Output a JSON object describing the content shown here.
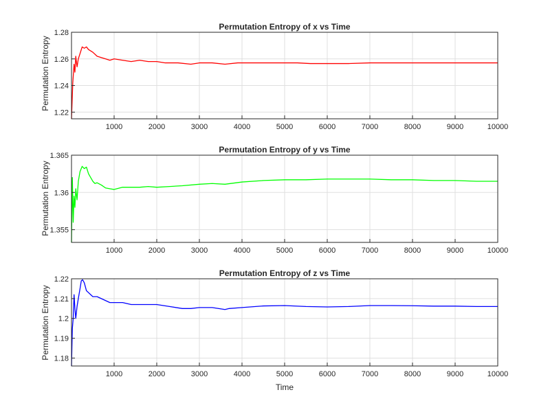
{
  "chart_data": [
    {
      "type": "line",
      "title": "Permutation Entropy of x vs Time",
      "xlabel": "",
      "ylabel": "Permutation Entropy",
      "xlim": [
        0,
        10000
      ],
      "ylim": [
        1.215,
        1.28
      ],
      "xticks": [
        1000,
        2000,
        3000,
        4000,
        5000,
        6000,
        7000,
        8000,
        9000,
        10000
      ],
      "xtick_labels": [
        "1000",
        "2000",
        "3000",
        "4000",
        "5000",
        "6000",
        "7000",
        "8000",
        "9000",
        "10000"
      ],
      "yticks": [
        1.22,
        1.24,
        1.26,
        1.28
      ],
      "ytick_labels": [
        "1.22",
        "1.24",
        "1.26",
        "1.28"
      ],
      "grid": true,
      "color": "#ff0000",
      "series": [
        {
          "x": [
            0,
            30,
            60,
            80,
            100,
            130,
            160,
            200,
            250,
            300,
            350,
            400,
            500,
            600,
            700,
            800,
            900,
            1000,
            1200,
            1400,
            1600,
            1800,
            2000,
            2200,
            2500,
            2800,
            3000,
            3300,
            3600,
            3900,
            4200,
            4500,
            4800,
            5000,
            5300,
            5600,
            6000,
            6500,
            7000,
            7500,
            8000,
            8500,
            9000,
            9500,
            10000
          ],
          "y": [
            1.215,
            1.242,
            1.256,
            1.25,
            1.262,
            1.254,
            1.26,
            1.264,
            1.269,
            1.268,
            1.269,
            1.267,
            1.265,
            1.262,
            1.261,
            1.26,
            1.259,
            1.26,
            1.259,
            1.258,
            1.259,
            1.258,
            1.258,
            1.257,
            1.257,
            1.256,
            1.257,
            1.257,
            1.256,
            1.257,
            1.257,
            1.257,
            1.257,
            1.257,
            1.257,
            1.2565,
            1.2565,
            1.2565,
            1.257,
            1.257,
            1.257,
            1.257,
            1.257,
            1.257,
            1.257
          ]
        }
      ]
    },
    {
      "type": "line",
      "title": "Permutation Entropy of y vs Time",
      "xlabel": "",
      "ylabel": "Permutation Entropy",
      "xlim": [
        0,
        10000
      ],
      "ylim": [
        1.3533,
        1.365
      ],
      "xticks": [
        1000,
        2000,
        3000,
        4000,
        5000,
        6000,
        7000,
        8000,
        9000,
        10000
      ],
      "xtick_labels": [
        "1000",
        "2000",
        "3000",
        "4000",
        "5000",
        "6000",
        "7000",
        "8000",
        "9000",
        "10000"
      ],
      "yticks": [
        1.355,
        1.36,
        1.365
      ],
      "ytick_labels": [
        "1.355",
        "1.36",
        "1.365"
      ],
      "grid": true,
      "color": "#00ff00",
      "series": [
        {
          "x": [
            0,
            20,
            40,
            60,
            80,
            100,
            130,
            160,
            200,
            250,
            300,
            350,
            400,
            450,
            500,
            550,
            600,
            700,
            800,
            900,
            1000,
            1200,
            1400,
            1600,
            1800,
            2000,
            2300,
            2600,
            3000,
            3300,
            3600,
            4000,
            4500,
            5000,
            5500,
            6000,
            6500,
            7000,
            7500,
            8000,
            8500,
            9000,
            9500,
            10000
          ],
          "y": [
            1.3533,
            1.362,
            1.356,
            1.3595,
            1.358,
            1.3605,
            1.359,
            1.3615,
            1.3628,
            1.3635,
            1.3632,
            1.3634,
            1.3625,
            1.362,
            1.3615,
            1.3612,
            1.3613,
            1.361,
            1.3606,
            1.3605,
            1.3604,
            1.3607,
            1.3607,
            1.3607,
            1.3608,
            1.3607,
            1.3608,
            1.3609,
            1.3611,
            1.3612,
            1.3611,
            1.3614,
            1.3616,
            1.3617,
            1.3617,
            1.3618,
            1.3618,
            1.3618,
            1.3617,
            1.3617,
            1.3616,
            1.3616,
            1.3615,
            1.3615
          ]
        }
      ]
    },
    {
      "type": "line",
      "title": "Permutation Entropy of z vs Time",
      "xlabel": "Time",
      "ylabel": "Permutation Entropy",
      "xlim": [
        0,
        10000
      ],
      "ylim": [
        1.176,
        1.22
      ],
      "xticks": [
        1000,
        2000,
        3000,
        4000,
        5000,
        6000,
        7000,
        8000,
        9000,
        10000
      ],
      "xtick_labels": [
        "1000",
        "2000",
        "3000",
        "4000",
        "5000",
        "6000",
        "7000",
        "8000",
        "9000",
        "10000"
      ],
      "yticks": [
        1.18,
        1.19,
        1.2,
        1.21,
        1.22
      ],
      "ytick_labels": [
        "1.18",
        "1.19",
        "1.2",
        "1.21",
        "1.22"
      ],
      "grid": true,
      "color": "#0000ff",
      "series": [
        {
          "x": [
            0,
            20,
            40,
            60,
            80,
            100,
            130,
            160,
            200,
            230,
            260,
            300,
            350,
            400,
            450,
            500,
            600,
            700,
            800,
            900,
            1000,
            1200,
            1400,
            1600,
            1800,
            2000,
            2300,
            2600,
            2800,
            3000,
            3300,
            3600,
            3700,
            4000,
            4500,
            5000,
            5500,
            6000,
            6500,
            7000,
            7500,
            8000,
            8500,
            9000,
            9500,
            10000
          ],
          "y": [
            1.176,
            1.195,
            1.2,
            1.212,
            1.205,
            1.2,
            1.206,
            1.21,
            1.215,
            1.219,
            1.2195,
            1.218,
            1.214,
            1.213,
            1.212,
            1.211,
            1.211,
            1.21,
            1.209,
            1.208,
            1.208,
            1.208,
            1.207,
            1.207,
            1.207,
            1.207,
            1.206,
            1.205,
            1.205,
            1.2055,
            1.2055,
            1.2045,
            1.205,
            1.2055,
            1.2063,
            1.2065,
            1.206,
            1.2058,
            1.206,
            1.2065,
            1.2065,
            1.2064,
            1.2062,
            1.2062,
            1.206,
            1.206
          ]
        }
      ]
    }
  ]
}
